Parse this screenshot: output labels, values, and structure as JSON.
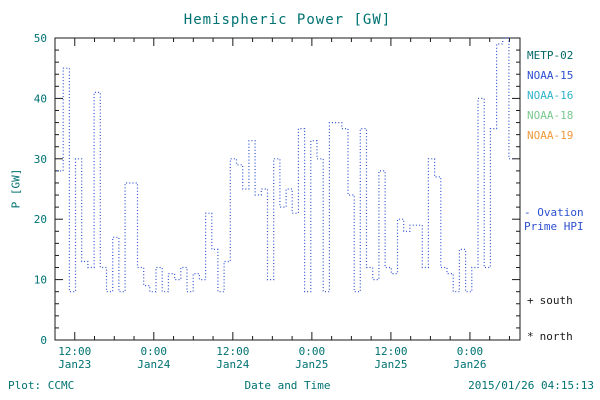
{
  "title": "Hemispheric Power [GW]",
  "colors": {
    "text": "#007272",
    "frame": "#1a1a1a"
  },
  "legend": {
    "items": [
      {
        "label": "METP-02",
        "color": "#006868"
      },
      {
        "label": "NOAA-15",
        "color": "#2d4fd0"
      },
      {
        "label": "NOAA-16",
        "color": "#2fb3c9"
      },
      {
        "label": "NOAA-18",
        "color": "#79c98f"
      },
      {
        "label": "NOAA-19",
        "color": "#f09a3c"
      }
    ]
  },
  "annotations": {
    "ovation": {
      "line1": "- Ovation",
      "line2": "Prime HPI",
      "color": "#2d4fd0"
    },
    "markers": [
      {
        "symbol": "+",
        "label": "south"
      },
      {
        "symbol": "*",
        "label": "north"
      }
    ]
  },
  "footer": {
    "credit": "Plot: CCMC",
    "timestamp": "2015/01/26 04:15:13"
  },
  "chart_data": {
    "type": "line",
    "style": "dotted-step",
    "title": "Hemispheric Power [GW]",
    "xlabel": "Date and Time",
    "ylabel": "P [GW]",
    "ylim": [
      0,
      50
    ],
    "y_ticks": [
      0,
      10,
      20,
      30,
      40,
      50
    ],
    "grid": false,
    "legend_position": "right",
    "xlim_hours": [
      0,
      70.6
    ],
    "x_ticks": {
      "hours": [
        3,
        15,
        27,
        39,
        51,
        63
      ],
      "labels": [
        [
          "12:00",
          "Jan23"
        ],
        [
          "0:00",
          "Jan24"
        ],
        [
          "12:00",
          "Jan24"
        ],
        [
          "0:00",
          "Jan25"
        ],
        [
          "12:00",
          "Jan25"
        ],
        [
          "0:00",
          "Jan26"
        ]
      ]
    },
    "series": [
      {
        "name": "Hemispheric Power Index (Ovation Prime HPI)",
        "color": "#2d4fd0",
        "x_hours_start": 0.3,
        "x_hours_step": 0.94,
        "values_gw": [
          28,
          45,
          8,
          30,
          13,
          12,
          41,
          12,
          8,
          17,
          8,
          26,
          26,
          12,
          9,
          8,
          12,
          8,
          11,
          10,
          12,
          8,
          11,
          10,
          21,
          15,
          8,
          13,
          30,
          29,
          25,
          33,
          24,
          25,
          10,
          30,
          22,
          25,
          21,
          35,
          8,
          33,
          30,
          8,
          36,
          36,
          35,
          24,
          8,
          35,
          12,
          10,
          28,
          12,
          11,
          20,
          18,
          19,
          19,
          12,
          30,
          27,
          12,
          11,
          8,
          15,
          8,
          12,
          40,
          12,
          35,
          49,
          50,
          30
        ]
      }
    ]
  }
}
